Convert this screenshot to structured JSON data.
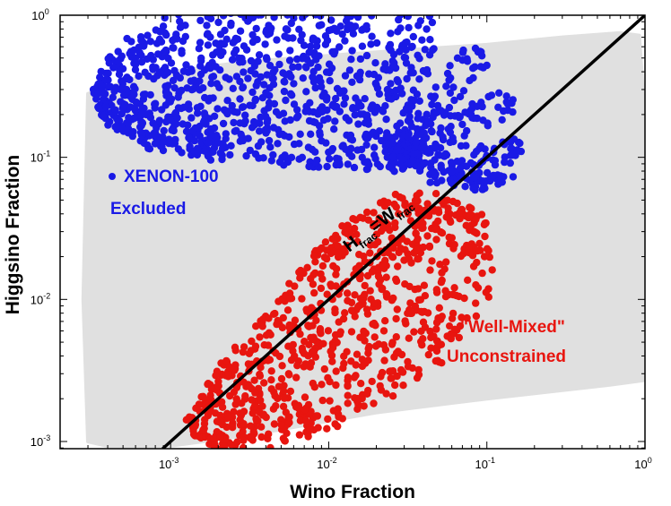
{
  "chart_data": {
    "type": "scatter",
    "xlabel": "Wino Fraction",
    "ylabel": "Higgsino Fraction",
    "xscale": "log",
    "yscale": "log",
    "xlim": [
      0.0002,
      1
    ],
    "ylim": [
      0.00089,
      1
    ],
    "x_ticks": [
      {
        "base": "10",
        "exp": "-3",
        "value": 0.001
      },
      {
        "base": "10",
        "exp": "-2",
        "value": 0.01
      },
      {
        "base": "10",
        "exp": "-1",
        "value": 0.1
      },
      {
        "base": "10",
        "exp": "0",
        "value": 1
      }
    ],
    "y_ticks": [
      {
        "base": "10",
        "exp": "-3",
        "value": 0.001
      },
      {
        "base": "10",
        "exp": "-2",
        "value": 0.01
      },
      {
        "base": "10",
        "exp": "-1",
        "value": 0.1
      },
      {
        "base": "10",
        "exp": "0",
        "value": 1
      }
    ],
    "grid": false,
    "series": [
      {
        "color": "#e0e0e0",
        "region": [
          [
            0.0003,
            0.28
          ],
          [
            0.0007,
            0.38
          ],
          [
            0.003,
            0.47
          ],
          [
            0.02,
            0.55
          ],
          [
            0.1,
            0.62
          ],
          [
            0.3,
            0.7
          ],
          [
            0.7,
            0.75
          ],
          [
            0.92,
            0.72
          ],
          [
            0.97,
            0.3
          ],
          [
            0.99,
            0.08
          ],
          [
            1.0,
            0.0027
          ],
          [
            0.6,
            0.0025
          ],
          [
            0.1,
            0.002
          ],
          [
            0.02,
            0.0016
          ],
          [
            0.003,
            0.0011
          ],
          [
            0.0008,
            0.0009
          ],
          [
            0.00045,
            0.0009
          ],
          [
            0.0003,
            0.001
          ],
          [
            0.00028,
            0.01
          ],
          [
            0.0003,
            0.28
          ]
        ]
      },
      {
        "name": "XENON-100 Excluded",
        "color": "#1a1ae6",
        "spine": [
          [
            0.00035,
            0.22,
            0.015
          ],
          [
            0.0006,
            0.27,
            0.04
          ],
          [
            0.0015,
            0.34,
            0.055
          ],
          [
            0.005,
            0.35,
            0.06
          ],
          [
            0.02,
            0.32,
            0.06
          ],
          [
            0.04,
            0.27,
            0.055
          ],
          [
            0.055,
            0.2,
            0.05
          ],
          [
            0.065,
            0.13,
            0.05
          ],
          [
            0.066,
            0.085,
            0.04
          ],
          [
            0.063,
            0.062,
            0.02
          ]
        ],
        "extra_points": [
          [
            0.0006,
            0.5
          ],
          [
            0.0006,
            0.45
          ],
          [
            0.0005,
            0.42
          ]
        ]
      },
      {
        "name": "\"Well-Mixed\" Unconstrained",
        "color": "#e8150f",
        "spine": [
          [
            0.0014,
            0.0011,
            0.012
          ],
          [
            0.003,
            0.0018,
            0.035
          ],
          [
            0.008,
            0.0035,
            0.05
          ],
          [
            0.02,
            0.0085,
            0.06
          ],
          [
            0.04,
            0.02,
            0.055
          ],
          [
            0.055,
            0.035,
            0.04
          ],
          [
            0.062,
            0.05,
            0.02
          ]
        ]
      },
      {
        "name": "H_frac = W_frac",
        "type": "line",
        "color": "#000000",
        "x": [
          0.00089,
          1
        ],
        "y": [
          0.00089,
          1
        ]
      }
    ],
    "annotations": {
      "xenon_line1": "XENON-100",
      "xenon_line2": "Excluded",
      "mixed_line1": "\"Well-Mixed\"",
      "mixed_line2": "Unconstrained",
      "diag_h": "H",
      "diag_sub1": "frac",
      "diag_eq": "=W",
      "diag_sub2": "frac"
    }
  }
}
